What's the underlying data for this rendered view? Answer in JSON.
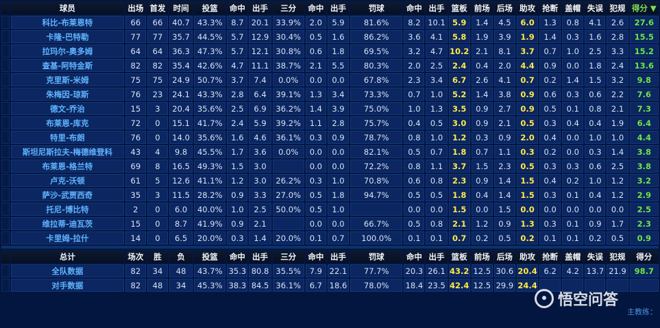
{
  "headers": [
    "",
    "球员",
    "出场",
    "首发",
    "时间",
    "投篮",
    "命中",
    "出手",
    "三分",
    "命中",
    "出手",
    "罚球",
    "命中",
    "出手",
    "篮板",
    "前场",
    "后场",
    "助攻",
    "抢断",
    "盖帽",
    "失误",
    "犯规",
    "得分 ▼"
  ],
  "players": [
    [
      "科比-布莱恩特",
      "66",
      "66",
      "40.7",
      "43.3%",
      "8.7",
      "20.1",
      "33.9%",
      "2.0",
      "5.9",
      "81.6%",
      "8.2",
      "10.1",
      "5.9",
      "1.4",
      "4.5",
      "6.0",
      "1.3",
      "0.8",
      "4.1",
      "2.6",
      "27.6"
    ],
    [
      "卡隆-巴特勒",
      "77",
      "77",
      "35.7",
      "44.5%",
      "5.7",
      "12.9",
      "30.4%",
      "0.5",
      "1.6",
      "86.2%",
      "3.6",
      "4.1",
      "5.8",
      "1.9",
      "3.9",
      "1.9",
      "1.4",
      "0.3",
      "1.6",
      "2.8",
      "15.5"
    ],
    [
      "拉玛尔-奥多姆",
      "64",
      "64",
      "36.3",
      "47.3%",
      "5.7",
      "12.1",
      "30.8%",
      "0.6",
      "1.8",
      "69.5%",
      "3.2",
      "4.7",
      "10.2",
      "2.1",
      "8.1",
      "3.7",
      "0.7",
      "1.0",
      "2.5",
      "3.3",
      "15.2"
    ],
    [
      "查基-阿特金斯",
      "82",
      "82",
      "35.4",
      "42.6%",
      "4.7",
      "11.1",
      "38.7%",
      "2.1",
      "5.5",
      "80.3%",
      "2.0",
      "2.5",
      "2.4",
      "0.4",
      "2.0",
      "4.4",
      "0.9",
      "0.0",
      "1.8",
      "2.4",
      "13.6"
    ],
    [
      "克里斯-米姆",
      "75",
      "75",
      "24.9",
      "50.7%",
      "3.7",
      "7.4",
      "0.0%",
      "0.0",
      "0.0",
      "67.8%",
      "2.3",
      "3.4",
      "6.7",
      "2.6",
      "4.1",
      "0.7",
      "0.2",
      "1.4",
      "1.5",
      "3.2",
      "9.8"
    ],
    [
      "朱梅因-琼斯",
      "76",
      "23",
      "24.1",
      "43.3%",
      "2.8",
      "6.4",
      "39.1%",
      "1.3",
      "3.4",
      "73.3%",
      "0.7",
      "1.0",
      "5.2",
      "1.4",
      "3.8",
      "0.9",
      "0.6",
      "0.3",
      "0.6",
      "2.2",
      "7.6"
    ],
    [
      "德文-乔治",
      "15",
      "3",
      "20.4",
      "35.6%",
      "2.5",
      "6.9",
      "36.2%",
      "1.4",
      "3.9",
      "75.0%",
      "1.0",
      "1.3",
      "3.5",
      "0.9",
      "2.7",
      "0.9",
      "0.5",
      "0.1",
      "0.8",
      "2.1",
      "7.3"
    ],
    [
      "布莱恩-库克",
      "72",
      "0",
      "15.1",
      "41.7%",
      "2.4",
      "5.9",
      "39.2%",
      "1.1",
      "2.8",
      "75.7%",
      "0.4",
      "0.5",
      "3.0",
      "0.9",
      "2.1",
      "0.5",
      "0.3",
      "0.4",
      "0.4",
      "1.9",
      "6.4"
    ],
    [
      "特里-布朗",
      "76",
      "0",
      "14.0",
      "35.6%",
      "1.6",
      "4.6",
      "36.1%",
      "0.3",
      "0.9",
      "78.7%",
      "0.8",
      "1.0",
      "1.2",
      "0.3",
      "0.9",
      "2.0",
      "0.4",
      "0.0",
      "1.0",
      "1.0",
      "4.4"
    ],
    [
      "斯坦尼斯拉夫-梅德维登科",
      "43",
      "4",
      "9.8",
      "45.5%",
      "1.7",
      "3.6",
      "0.0%",
      "0.0",
      "0.0",
      "82.1%",
      "0.5",
      "0.7",
      "1.8",
      "0.7",
      "1.1",
      "0.3",
      "0.2",
      "0.0",
      "0.3",
      "1.4",
      "3.8"
    ],
    [
      "布莱恩-格兰特",
      "69",
      "8",
      "16.5",
      "49.3%",
      "1.5",
      "3.0",
      "",
      "0.0",
      "0.0",
      "72.2%",
      "0.8",
      "1.1",
      "3.7",
      "1.5",
      "2.3",
      "0.5",
      "0.3",
      "0.3",
      "0.6",
      "2.5",
      "3.8"
    ],
    [
      "卢克-沃顿",
      "61",
      "5",
      "12.6",
      "41.1%",
      "1.2",
      "3.0",
      "26.2%",
      "0.3",
      "1.0",
      "70.8%",
      "0.6",
      "0.8",
      "2.3",
      "0.9",
      "1.4",
      "1.5",
      "0.4",
      "0.2",
      "1.0",
      "1.2",
      "3.2"
    ],
    [
      "萨沙-武贾西奇",
      "35",
      "3",
      "11.5",
      "28.2%",
      "0.9",
      "3.3",
      "27.0%",
      "0.5",
      "1.8",
      "94.7%",
      "0.5",
      "0.5",
      "1.8",
      "0.4",
      "1.4",
      "1.5",
      "0.3",
      "0.1",
      "0.4",
      "1.2",
      "2.9"
    ],
    [
      "托尼-博比特",
      "2",
      "0",
      "6.0",
      "40.0%",
      "1.0",
      "2.5",
      "50.0%",
      "0.5",
      "1.0",
      "",
      "0.0",
      "0.0",
      "1.5",
      "0.0",
      "1.5",
      "0.0",
      "0.0",
      "0.0",
      "0.0",
      "0.0",
      "2.5"
    ],
    [
      "维拉蒂-迪瓦茨",
      "15",
      "0",
      "8.7",
      "41.9%",
      "0.9",
      "2.1",
      "",
      "0.0",
      "0.0",
      "66.7%",
      "0.5",
      "0.8",
      "2.1",
      "1.2",
      "0.9",
      "1.3",
      "0.3",
      "0.1",
      "0.9",
      "1.7",
      "2.3"
    ],
    [
      "卡里姆-拉什",
      "14",
      "0",
      "6.5",
      "20.0%",
      "0.3",
      "1.4",
      "20.0%",
      "0.1",
      "0.7",
      "100.0%",
      "0.1",
      "0.1",
      "0.7",
      "0.2",
      "0.5",
      "0.2",
      "0.1",
      "0.1",
      "0.2",
      "0.5",
      "0.9"
    ]
  ],
  "total_headers": [
    "",
    "总计",
    "场次",
    "胜",
    "负",
    "投篮",
    "命中",
    "出手",
    "三分",
    "命中",
    "出手",
    "罚球",
    "命中",
    "出手",
    "篮板",
    "前场",
    "后场",
    "助攻",
    "抢断",
    "盖帽",
    "失误",
    "犯规",
    "得分"
  ],
  "totals": [
    [
      "全队数据",
      "82",
      "34",
      "48",
      "43.7%",
      "35.3",
      "80.8",
      "35.5%",
      "7.9",
      "22.1",
      "77.7%",
      "20.3",
      "26.1",
      "43.2",
      "12.5",
      "30.6",
      "20.4",
      "6.2",
      "4.2",
      "13.7",
      "21.9",
      "98.7"
    ],
    [
      "对手数据",
      "82",
      "48",
      "34",
      "45.3%",
      "38.3",
      "84.5",
      "36.1%",
      "6.7",
      "18.6",
      "78.0%",
      "18.4",
      "23.5",
      "42.4",
      "12.5",
      "29.9",
      "24.4",
      "",
      "",
      "",
      "",
      ""
    ]
  ],
  "coach_text": "主教练：",
  "watermark": "悟空问答",
  "colors": {
    "name": "#5fb3ff",
    "highlight": "#ffe94a",
    "points": "#6fe34a",
    "background": "#031640"
  }
}
